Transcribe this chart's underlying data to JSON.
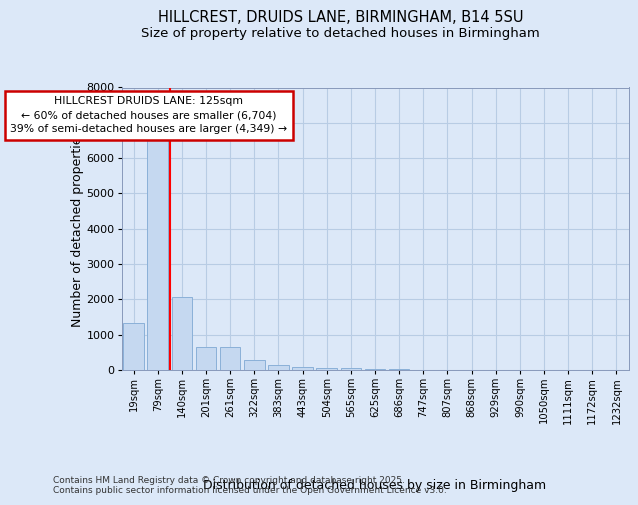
{
  "title_line1": "HILLCREST, DRUIDS LANE, BIRMINGHAM, B14 5SU",
  "title_line2": "Size of property relative to detached houses in Birmingham",
  "xlabel": "Distribution of detached houses by size in Birmingham",
  "ylabel": "Number of detached properties",
  "categories": [
    "19sqm",
    "79sqm",
    "140sqm",
    "201sqm",
    "261sqm",
    "322sqm",
    "383sqm",
    "443sqm",
    "504sqm",
    "565sqm",
    "625sqm",
    "686sqm",
    "747sqm",
    "807sqm",
    "868sqm",
    "929sqm",
    "990sqm",
    "1050sqm",
    "1111sqm",
    "1172sqm",
    "1232sqm"
  ],
  "values": [
    1330,
    6650,
    2080,
    640,
    640,
    295,
    155,
    95,
    60,
    50,
    40,
    30,
    0,
    0,
    0,
    0,
    0,
    0,
    0,
    0,
    0
  ],
  "bar_color": "#c5d8f0",
  "bar_edge_color": "#8ab0d8",
  "redline_x": 1.5,
  "annotation_line1": "HILLCREST DRUIDS LANE: 125sqm",
  "annotation_line2": "← 60% of detached houses are smaller (6,704)",
  "annotation_line3": "39% of semi-detached houses are larger (4,349) →",
  "annotation_box_edgecolor": "#cc0000",
  "ylim": [
    0,
    8000
  ],
  "yticks": [
    0,
    1000,
    2000,
    3000,
    4000,
    5000,
    6000,
    7000,
    8000
  ],
  "bg_color": "#dce8f8",
  "grid_color": "#b8cce4",
  "fig_bg_color": "#dce8f8",
  "footer_line1": "Contains HM Land Registry data © Crown copyright and database right 2025.",
  "footer_line2": "Contains public sector information licensed under the Open Government Licence v3.0."
}
